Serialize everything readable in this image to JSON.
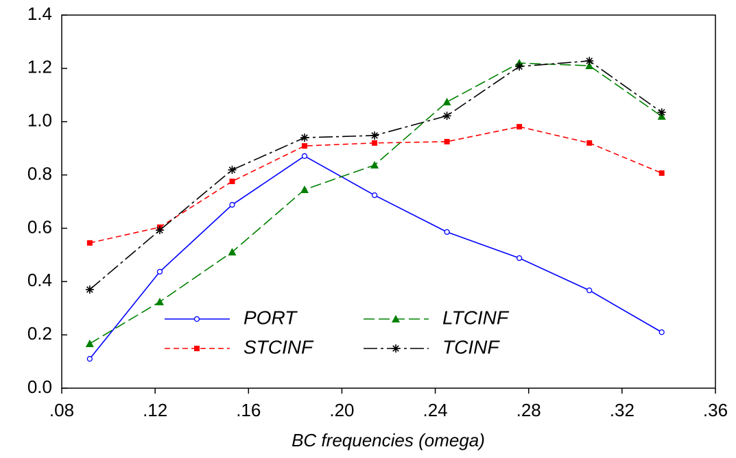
{
  "chart_data": {
    "type": "line",
    "x_label": "BC frequencies (omega)",
    "x": [
      0.092,
      0.122,
      0.153,
      0.184,
      0.214,
      0.245,
      0.276,
      0.306,
      0.337
    ],
    "series": [
      {
        "name": "PORT",
        "color": "#0000ff",
        "marker": "circle",
        "dash": "solid",
        "values": [
          0.11,
          0.437,
          0.688,
          0.871,
          0.724,
          0.586,
          0.488,
          0.367,
          0.21
        ]
      },
      {
        "name": "STCINF",
        "color": "#ff0000",
        "marker": "square",
        "dash": "dashed",
        "values": [
          0.545,
          0.604,
          0.776,
          0.909,
          0.92,
          0.925,
          0.981,
          0.92,
          0.807
        ]
      },
      {
        "name": "LTCINF",
        "color": "#008000",
        "marker": "triangle",
        "dash": "longdash",
        "values": [
          0.167,
          0.324,
          0.511,
          0.745,
          0.837,
          1.074,
          1.22,
          1.21,
          1.02
        ]
      },
      {
        "name": "TCINF",
        "color": "#000000",
        "marker": "star",
        "dash": "dashdot",
        "values": [
          0.37,
          0.593,
          0.819,
          0.94,
          0.948,
          1.022,
          1.207,
          1.228,
          1.035
        ]
      }
    ],
    "xlim": [
      0.08,
      0.36
    ],
    "xticks": [
      {
        "value": 0.08,
        "label": ".08"
      },
      {
        "value": 0.12,
        "label": ".12"
      },
      {
        "value": 0.16,
        "label": ".16"
      },
      {
        "value": 0.2,
        "label": ".20"
      },
      {
        "value": 0.24,
        "label": ".24"
      },
      {
        "value": 0.28,
        "label": ".28"
      },
      {
        "value": 0.32,
        "label": ".32"
      },
      {
        "value": 0.36,
        "label": ".36"
      }
    ],
    "ylim": [
      0,
      1.4
    ],
    "yticks": [
      {
        "value": 0,
        "label": "0.0"
      },
      0.2,
      0.4,
      0.6,
      0.8,
      {
        "value": 1,
        "label": "1.0"
      },
      1.2,
      1.4
    ],
    "grid": false,
    "legend": "lower-center"
  }
}
